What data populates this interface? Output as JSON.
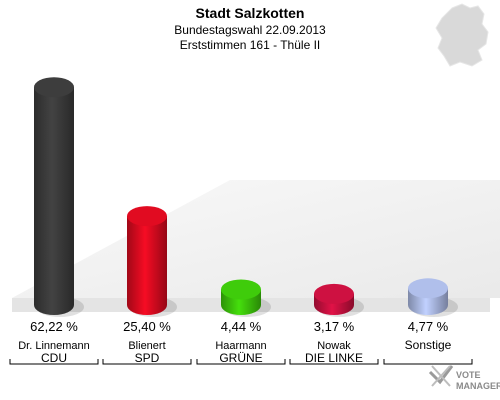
{
  "header": {
    "title": "Stadt Salzkotten",
    "subtitle1": "Bundestagswahl 22.09.2013",
    "subtitle2": "Erststimmen 161 - Thüle II"
  },
  "logo": {
    "line1": "VOTE",
    "line2": "MANAGER",
    "icon": "checkmark-cross-icon"
  },
  "map_icon": "germany-map-icon",
  "chart_data": {
    "type": "bar",
    "ylim": [
      0,
      70
    ],
    "grid": false,
    "value_unit": "%",
    "categories": [
      "CDU",
      "SPD",
      "GRÜNE",
      "DIE LINKE",
      "Sonstige"
    ],
    "candidates": [
      "Dr. Linnemann",
      "Blienert",
      "Haarmann",
      "Nowak",
      ""
    ],
    "values": [
      62.22,
      25.4,
      4.44,
      3.17,
      4.77
    ],
    "value_labels": [
      "62,22 %",
      "25,40 %",
      "4,44 %",
      "3,17 %",
      "4,77 %"
    ],
    "colors": [
      "#3a3a3a",
      "#d60a1f",
      "#3cc20a",
      "#c4103e",
      "#a8b6e0"
    ]
  }
}
